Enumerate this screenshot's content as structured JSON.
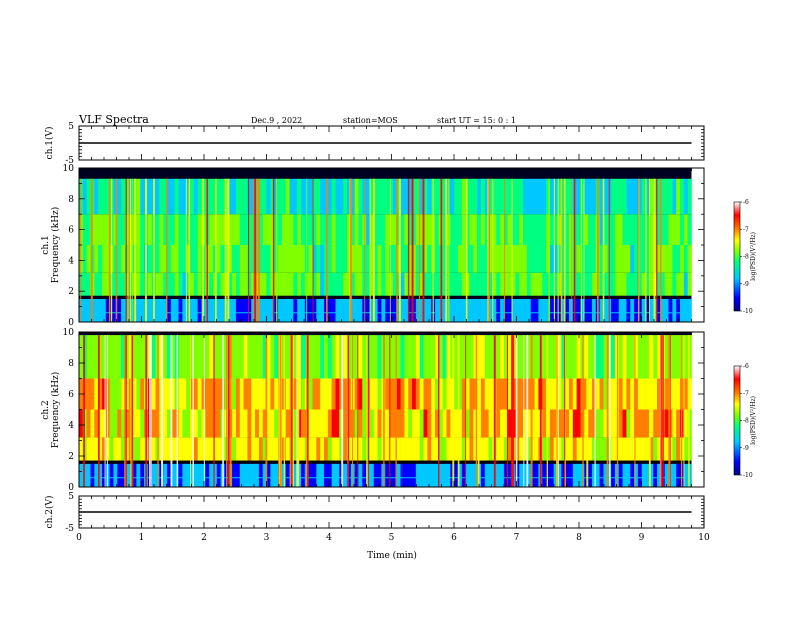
{
  "header": {
    "title": "VLF Spectra",
    "date": "Dec.9 , 2022",
    "station": "station=MOS",
    "start": "start UT = 15: 0 : 1"
  },
  "chart_data": [
    {
      "type": "line",
      "panel": "ch1-waveform",
      "ylabel": "ch.1(V)",
      "ylim": [
        -5,
        5
      ],
      "yticks": [
        "5",
        "-5"
      ],
      "xlim": [
        0,
        10
      ],
      "series": [
        {
          "x": [
            0,
            9.8
          ],
          "values": [
            0,
            0
          ]
        }
      ]
    },
    {
      "type": "heatmap",
      "panel": "ch1-spectrogram",
      "ylabel": [
        "ch.1",
        "Frequency (kHz)"
      ],
      "ylim": [
        0,
        10
      ],
      "yticks": [
        "0",
        "2",
        "4",
        "6",
        "8",
        "10"
      ],
      "xlim": [
        0,
        10
      ],
      "colorbar": {
        "min": -10,
        "max": -6,
        "ticks": [
          "-6",
          "-7",
          "-8",
          "-9",
          "-10"
        ],
        "label": "log(PSD)(V²/Hz)"
      },
      "data_xmax": 9.8
    },
    {
      "type": "heatmap",
      "panel": "ch2-spectrogram",
      "ylabel": [
        "ch.2",
        "Frequency (kHz)"
      ],
      "ylim": [
        0,
        10
      ],
      "yticks": [
        "0",
        "2",
        "4",
        "6",
        "8",
        "10"
      ],
      "xlim": [
        0,
        10
      ],
      "colorbar": {
        "min": -10,
        "max": -6,
        "ticks": [
          "-6",
          "-7",
          "-8",
          "-9",
          "-10"
        ],
        "label": "log(PSD)(V²/Hz)"
      },
      "data_xmax": 9.8
    },
    {
      "type": "line",
      "panel": "ch2-waveform",
      "ylabel": "ch.2(V)",
      "ylim": [
        -5,
        5
      ],
      "yticks": [
        "5",
        "-5"
      ],
      "xlim": [
        0,
        10
      ],
      "xlabel": "Time (min)",
      "xticks": [
        "0",
        "1",
        "2",
        "3",
        "4",
        "5",
        "6",
        "7",
        "8",
        "9",
        "10"
      ],
      "series": [
        {
          "x": [
            0,
            9.8
          ],
          "values": [
            0,
            0
          ]
        }
      ]
    }
  ],
  "colors": {
    "background": "#ffffff",
    "axis": "#000000",
    "colormap": [
      "#000080",
      "#0000ff",
      "#00c8ff",
      "#00ff80",
      "#80ff00",
      "#ffff00",
      "#ff8000",
      "#ff0000",
      "#ffffff"
    ]
  }
}
